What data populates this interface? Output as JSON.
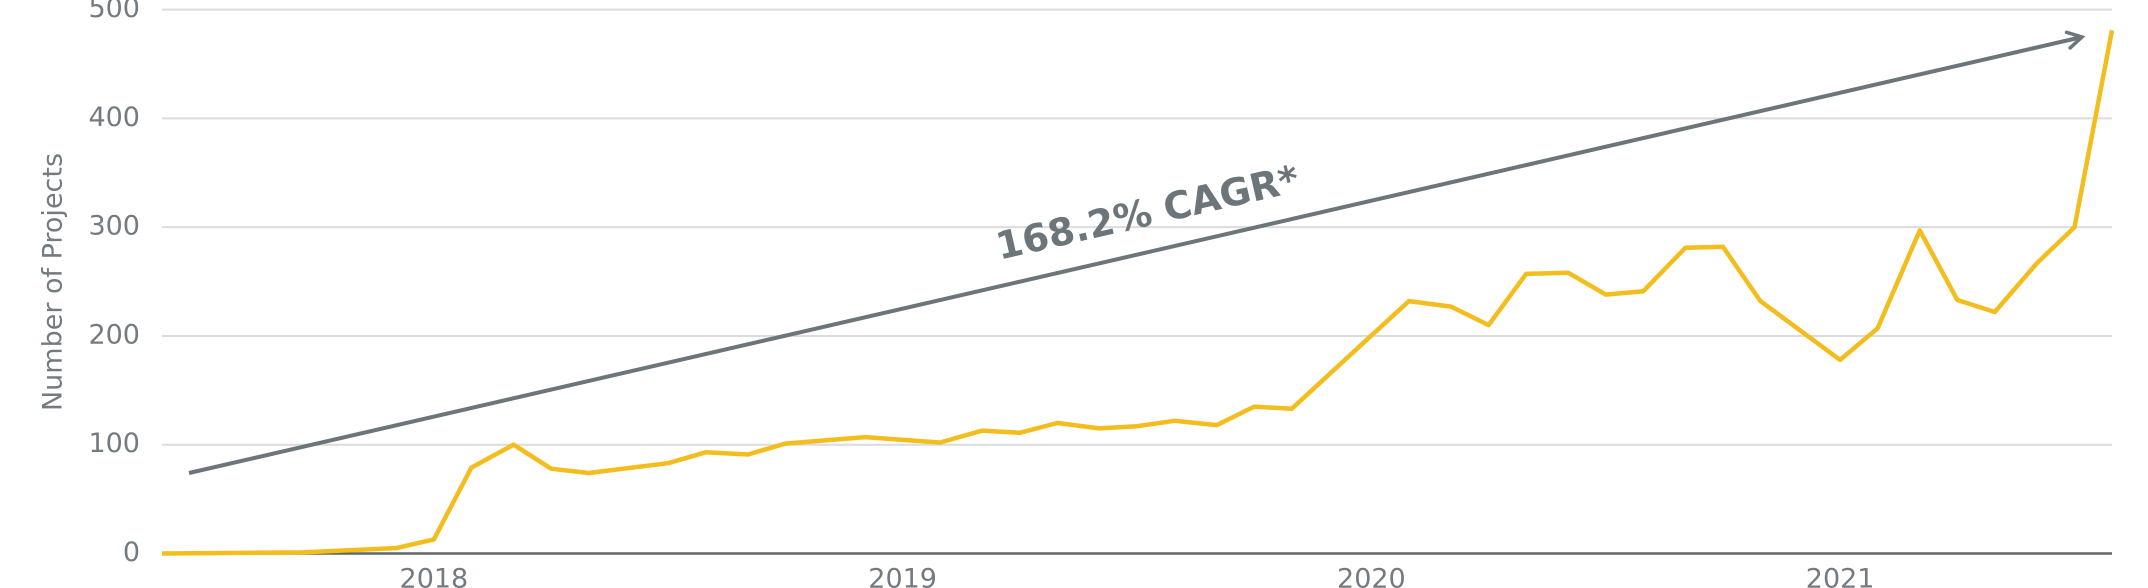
{
  "chart_data": {
    "type": "line",
    "y_label": "Number of Projects",
    "annotation": "168.2% CAGR*",
    "x": [
      2017.42,
      2017.72,
      2017.92,
      2018.0,
      2018.08,
      2018.17,
      2018.25,
      2018.33,
      2018.5,
      2018.58,
      2018.67,
      2018.75,
      2018.92,
      2019.08,
      2019.17,
      2019.25,
      2019.33,
      2019.42,
      2019.5,
      2019.58,
      2019.67,
      2019.75,
      2019.83,
      2020.08,
      2020.17,
      2020.25,
      2020.33,
      2020.42,
      2020.5,
      2020.58,
      2020.67,
      2020.75,
      2020.83,
      2021.0,
      2021.08,
      2021.17,
      2021.25,
      2021.33,
      2021.42,
      2021.5,
      2021.58
    ],
    "series": [
      {
        "color": "#f2bd1d",
        "values": [
          0,
          1,
          5,
          13,
          79,
          100,
          78,
          74,
          83,
          93,
          91,
          101,
          107,
          102,
          113,
          111,
          120,
          115,
          117,
          122,
          118,
          135,
          133,
          232,
          227,
          210,
          257,
          258,
          238,
          241,
          281,
          282,
          232,
          178,
          207,
          297,
          233,
          222,
          267,
          300,
          481
        ]
      }
    ],
    "xlim": [
      2017.42,
      2021.58
    ],
    "xticks": [
      2018,
      2019,
      2020,
      2021
    ],
    "ylim": [
      0,
      500
    ],
    "yticks": [
      0,
      100,
      200,
      300,
      400,
      500
    ],
    "grid": true
  }
}
